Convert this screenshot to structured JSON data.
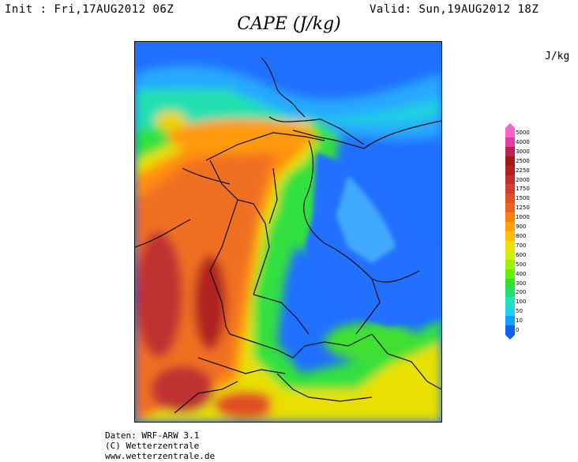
{
  "header": {
    "init": "Init : Fri,17AUG2012 06Z",
    "valid": "Valid: Sun,19AUG2012 18Z",
    "title": "CAPE (J/kg)"
  },
  "legend": {
    "unit": "J/kg",
    "levels": [
      "0",
      "10",
      "50",
      "100",
      "200",
      "300",
      "400",
      "500",
      "600",
      "700",
      "800",
      "900",
      "1000",
      "1250",
      "1500",
      "1750",
      "2000",
      "2250",
      "2500",
      "3000",
      "4000",
      "5000"
    ],
    "colors": [
      "#1060f0",
      "#10a0ff",
      "#20d0f0",
      "#20e0c0",
      "#20e070",
      "#30e030",
      "#60f000",
      "#a0f000",
      "#d0f000",
      "#f0e000",
      "#ffc000",
      "#ffa000",
      "#ff8000",
      "#f06020",
      "#e05020",
      "#d04030",
      "#c03030",
      "#b02020",
      "#a01818",
      "#c02050",
      "#e040a0",
      "#ff60d0"
    ]
  },
  "footer": {
    "line1": "Daten: WRF-ARW 3.1",
    "line2": "(C) Wetterzentrale",
    "line3": "www.wetterzentrale.de"
  }
}
